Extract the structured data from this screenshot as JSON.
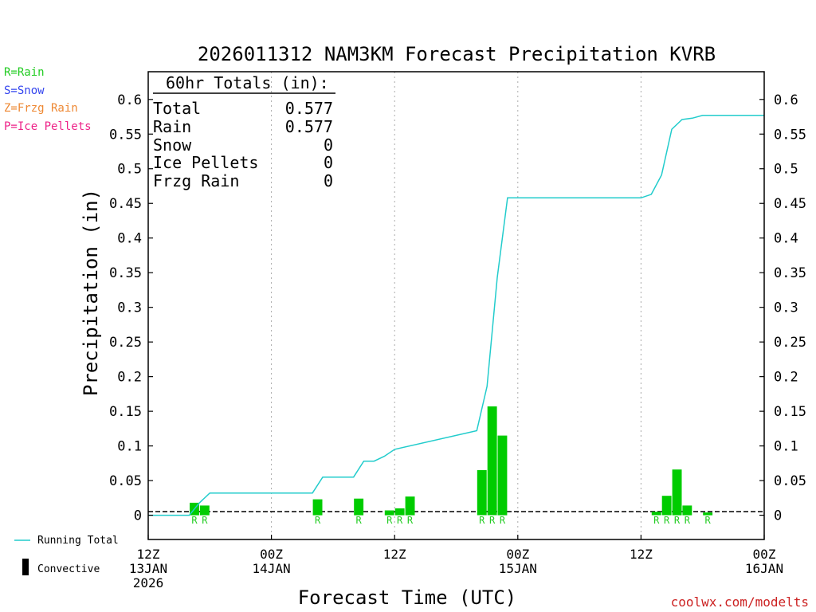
{
  "legend_types": [
    {
      "text": "R=Rain",
      "color": "#22cc22"
    },
    {
      "text": "S=Snow",
      "color": "#3344ee"
    },
    {
      "text": "Z=Frzg Rain",
      "color": "#ee8833"
    },
    {
      "text": "P=Ice Pellets",
      "color": "#ee2288"
    }
  ],
  "legend_bottom": {
    "running_total": "Running Total",
    "convective": "Convective"
  },
  "totals": {
    "header": "60hr Totals (in):",
    "rows": [
      {
        "label": "Total",
        "value": "0.577"
      },
      {
        "label": "Rain",
        "value": "0.577"
      },
      {
        "label": "Snow",
        "value": "0"
      },
      {
        "label": "Ice Pellets",
        "value": "0"
      },
      {
        "label": "Frzg Rain",
        "value": "0"
      }
    ]
  },
  "credit": "coolwx.com/modelts",
  "colors": {
    "bar": "#00cc00",
    "line": "#22cccc",
    "rain_label": "#22cc22",
    "grid": "#aaaaaa"
  },
  "chart_data": {
    "type": "bar",
    "title": "2026011312 NAM3KM Forecast Precipitation KVRB",
    "xlabel": "Forecast Time (UTC)",
    "ylabel": "Precipitation (in)",
    "ylim": [
      -0.035,
      0.64
    ],
    "xlim": [
      0,
      60
    ],
    "y_ticks": [
      "0",
      "0.05",
      "0.1",
      "0.15",
      "0.2",
      "0.25",
      "0.3",
      "0.35",
      "0.4",
      "0.45",
      "0.5",
      "0.55",
      "0.6"
    ],
    "x_ticks": [
      {
        "h": 0,
        "line1": "12Z",
        "line2": "13JAN",
        "line3": "2026"
      },
      {
        "h": 12,
        "line1": "00Z",
        "line2": "14JAN",
        "line3": ""
      },
      {
        "h": 24,
        "line1": "12Z",
        "line2": "",
        "line3": ""
      },
      {
        "h": 36,
        "line1": "00Z",
        "line2": "15JAN",
        "line3": ""
      },
      {
        "h": 48,
        "line1": "12Z",
        "line2": "",
        "line3": ""
      },
      {
        "h": 60,
        "line1": "00Z",
        "line2": "16JAN",
        "line3": ""
      }
    ],
    "grid_hours": [
      12,
      24,
      36,
      48
    ],
    "bars": [
      {
        "h": 5,
        "value": 0.018,
        "ptype": "R"
      },
      {
        "h": 6,
        "value": 0.014,
        "ptype": "R"
      },
      {
        "h": 17,
        "value": 0.023,
        "ptype": "R"
      },
      {
        "h": 21,
        "value": 0.024,
        "ptype": "R"
      },
      {
        "h": 24,
        "value": 0.007,
        "ptype": "R"
      },
      {
        "h": 25,
        "value": 0.01,
        "ptype": "R"
      },
      {
        "h": 26,
        "value": 0.027,
        "ptype": "R"
      },
      {
        "h": 33,
        "value": 0.065,
        "ptype": "R"
      },
      {
        "h": 34,
        "value": 0.157,
        "ptype": "R"
      },
      {
        "h": 35,
        "value": 0.115,
        "ptype": "R"
      },
      {
        "h": 50,
        "value": 0.005,
        "ptype": "R"
      },
      {
        "h": 51,
        "value": 0.028,
        "ptype": "R"
      },
      {
        "h": 52,
        "value": 0.066,
        "ptype": "R"
      },
      {
        "h": 53,
        "value": 0.014,
        "ptype": "R"
      },
      {
        "h": 55,
        "value": 0.004,
        "ptype": "R"
      }
    ],
    "running_total": {
      "name": "Running Total",
      "x": [
        0,
        4,
        5,
        6,
        16,
        17,
        20,
        21,
        22,
        23,
        24,
        32,
        33,
        34,
        35,
        48,
        49,
        50,
        51,
        52,
        53,
        54,
        60
      ],
      "y": [
        0,
        0,
        0.018,
        0.032,
        0.032,
        0.055,
        0.055,
        0.078,
        0.078,
        0.085,
        0.095,
        0.122,
        0.186,
        0.343,
        0.458,
        0.458,
        0.463,
        0.491,
        0.557,
        0.571,
        0.573,
        0.577,
        0.577
      ]
    }
  }
}
